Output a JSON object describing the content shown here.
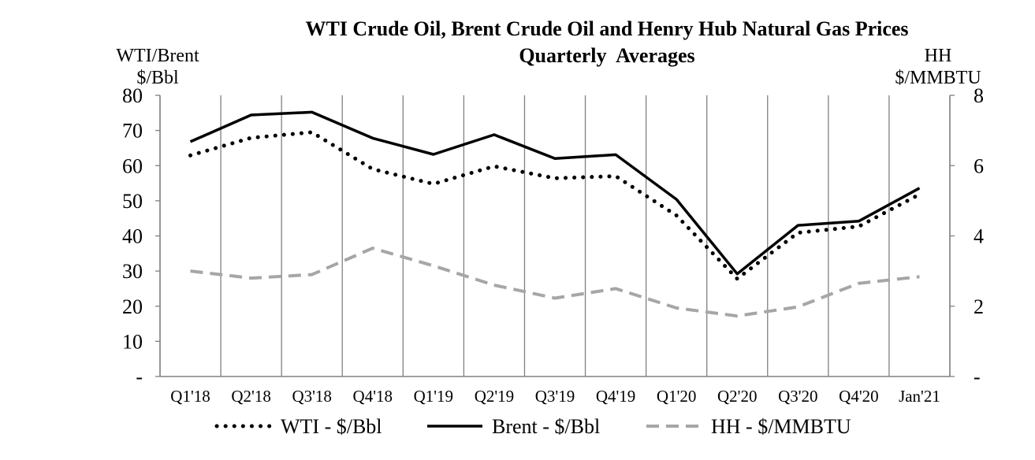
{
  "chart_data": {
    "type": "line",
    "title": "WTI Crude Oil, Brent Crude Oil and Henry Hub Natural Gas Prices",
    "subtitle": "Quarterly  Averages",
    "left_axis_label": [
      "WTI/Brent",
      "$/Bbl"
    ],
    "right_axis_label": [
      "HH",
      "$/MMBTU"
    ],
    "categories": [
      "Q1'18",
      "Q2'18",
      "Q3'18",
      "Q4'18",
      "Q1'19",
      "Q2'19",
      "Q3'19",
      "Q4'19",
      "Q1'20",
      "Q2'20",
      "Q3'20",
      "Q4'20",
      "Jan'21"
    ],
    "y_left_range": [
      0,
      80
    ],
    "y_left_ticks": [
      "-",
      "10",
      "20",
      "30",
      "40",
      "50",
      "60",
      "70",
      "80"
    ],
    "y_right_range": [
      0,
      8
    ],
    "y_right_ticks": [
      "-",
      "2",
      "4",
      "6",
      "8"
    ],
    "series": [
      {
        "name": "WTI - $/Bbl",
        "axis": "left",
        "style": "dotted",
        "color": "#000000",
        "values": [
          62.9,
          67.9,
          69.5,
          59.0,
          54.8,
          59.8,
          56.4,
          57.0,
          45.8,
          27.8,
          40.9,
          42.7,
          51.8
        ]
      },
      {
        "name": "Brent - $/Bbl",
        "axis": "left",
        "style": "solid",
        "color": "#000000",
        "values": [
          66.8,
          74.4,
          75.2,
          67.8,
          63.2,
          68.8,
          62.0,
          63.1,
          50.4,
          29.2,
          43.0,
          44.2,
          53.6
        ]
      },
      {
        "name": "HH - $/MMBTU",
        "axis": "right",
        "style": "dashed",
        "color": "#a6a6a6",
        "values": [
          3.0,
          2.8,
          2.9,
          3.65,
          3.15,
          2.6,
          2.23,
          2.5,
          1.95,
          1.72,
          1.98,
          2.65,
          2.84
        ]
      }
    ],
    "grid": "vertical lines only",
    "legend_position": "bottom"
  }
}
